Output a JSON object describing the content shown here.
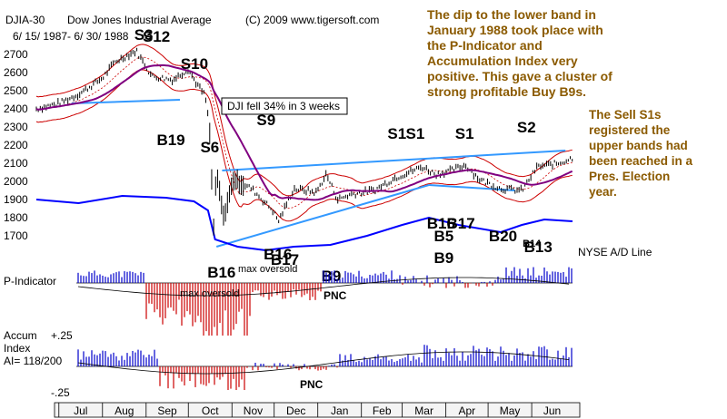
{
  "header": {
    "symbol": "DJIA-30",
    "title": "Dow Jones Industrial Average",
    "copyright": "(C) 2009 www.tigersoft.com",
    "date_range": "6/ 15/ 1987- 6/ 30/ 1988"
  },
  "notes": {
    "top_right": [
      "The dip to the lower band in",
      "January 1988 took place with",
      "the P-Indicator and",
      "Accumulation Index very",
      "positive.  This gave a cluster of",
      "strong profitable Buy B9s."
    ],
    "right": [
      "The Sell S1s",
      "registered the",
      "upper bands had",
      "been reached in a",
      "Pres. Election",
      "year."
    ]
  },
  "annotation_box": "DJI fell 34% in 3 weeks",
  "nyse_label": "NYSE A/D Line",
  "panels": {
    "p_indicator": {
      "label": "P-Indicator",
      "note": "max oversold",
      "pnc": "PNC"
    },
    "accum": {
      "label_line1": "Accum",
      "label_line2": "Index",
      "label_line3": "AI= 118/200",
      "plus": "+.25",
      "minus": "-.25",
      "pnc": "PNC"
    }
  },
  "colors": {
    "note": "#8b5a00",
    "price": "#000000",
    "adline": "#0000ff",
    "band": "#cc0000",
    "ma": "#800080",
    "trend": "#3399ff",
    "pos_hist": "#0000cc",
    "neg_hist": "#cc0000"
  },
  "chart_data": {
    "type": "line",
    "y_ticks": [
      2700,
      2600,
      2500,
      2400,
      2300,
      2200,
      2100,
      2000,
      1900,
      1800,
      1700
    ],
    "ylim": [
      1600,
      2760
    ],
    "months": [
      "Jul",
      "Aug",
      "Sep",
      "Oct",
      "Nov",
      "Dec",
      "Jan",
      "Feb",
      "Mar",
      "Apr",
      "May",
      "Jun"
    ],
    "price_close": [
      [
        "1987-06-15",
        2400
      ],
      [
        "1987-07-01",
        2430
      ],
      [
        "1987-07-15",
        2480
      ],
      [
        "1987-08-01",
        2570
      ],
      [
        "1987-08-10",
        2660
      ],
      [
        "1987-08-25",
        2720
      ],
      [
        "1987-09-05",
        2580
      ],
      [
        "1987-09-20",
        2560
      ],
      [
        "1987-10-01",
        2620
      ],
      [
        "1987-10-06",
        2550
      ],
      [
        "1987-10-13",
        2470
      ],
      [
        "1987-10-16",
        2300
      ],
      [
        "1987-10-19",
        1750
      ],
      [
        "1987-10-21",
        2050
      ],
      [
        "1987-10-26",
        1800
      ],
      [
        "1987-11-02",
        2010
      ],
      [
        "1987-11-15",
        1960
      ],
      [
        "1987-11-30",
        1840
      ],
      [
        "1987-12-04",
        1780
      ],
      [
        "1987-12-15",
        1960
      ],
      [
        "1987-12-31",
        1940
      ],
      [
        "1988-01-07",
        2040
      ],
      [
        "1988-01-15",
        1900
      ],
      [
        "1988-01-25",
        1930
      ],
      [
        "1988-02-10",
        1950
      ],
      [
        "1988-02-25",
        2020
      ],
      [
        "1988-03-15",
        2080
      ],
      [
        "1988-03-25",
        2040
      ],
      [
        "1988-04-05",
        2060
      ],
      [
        "1988-04-15",
        2090
      ],
      [
        "1988-04-25",
        2010
      ],
      [
        "1988-05-10",
        1960
      ],
      [
        "1988-05-25",
        1950
      ],
      [
        "1988-06-05",
        2080
      ],
      [
        "1988-06-20",
        2100
      ],
      [
        "1988-06-30",
        2130
      ]
    ],
    "signals": [
      {
        "name": "S3",
        "date": "1987-08-30"
      },
      {
        "name": "S12",
        "date": "1987-09-05"
      },
      {
        "name": "S10",
        "date": "1987-10-02"
      },
      {
        "name": "B19",
        "date": "1987-09-15"
      },
      {
        "name": "S6",
        "date": "1987-10-16"
      },
      {
        "name": "S9",
        "date": "1987-11-25"
      },
      {
        "name": "B16",
        "date": "1987-10-21"
      },
      {
        "name": "B16",
        "date": "1987-11-30"
      },
      {
        "name": "B17",
        "date": "1987-12-05"
      },
      {
        "name": "B9",
        "date": "1988-01-10"
      },
      {
        "name": "S1",
        "date": "1988-02-26"
      },
      {
        "name": "S1",
        "date": "1988-03-10"
      },
      {
        "name": "S1",
        "date": "1988-04-14"
      },
      {
        "name": "S2",
        "date": "1988-05-28"
      },
      {
        "name": "B16",
        "date": "1988-03-25"
      },
      {
        "name": "B17",
        "date": "1988-04-08"
      },
      {
        "name": "B5",
        "date": "1988-03-30"
      },
      {
        "name": "B9",
        "date": "1988-03-30"
      },
      {
        "name": "B20",
        "date": "1988-05-08"
      },
      {
        "name": "B14",
        "date": "1988-06-01"
      },
      {
        "name": "B13",
        "date": "1988-06-02"
      }
    ]
  }
}
